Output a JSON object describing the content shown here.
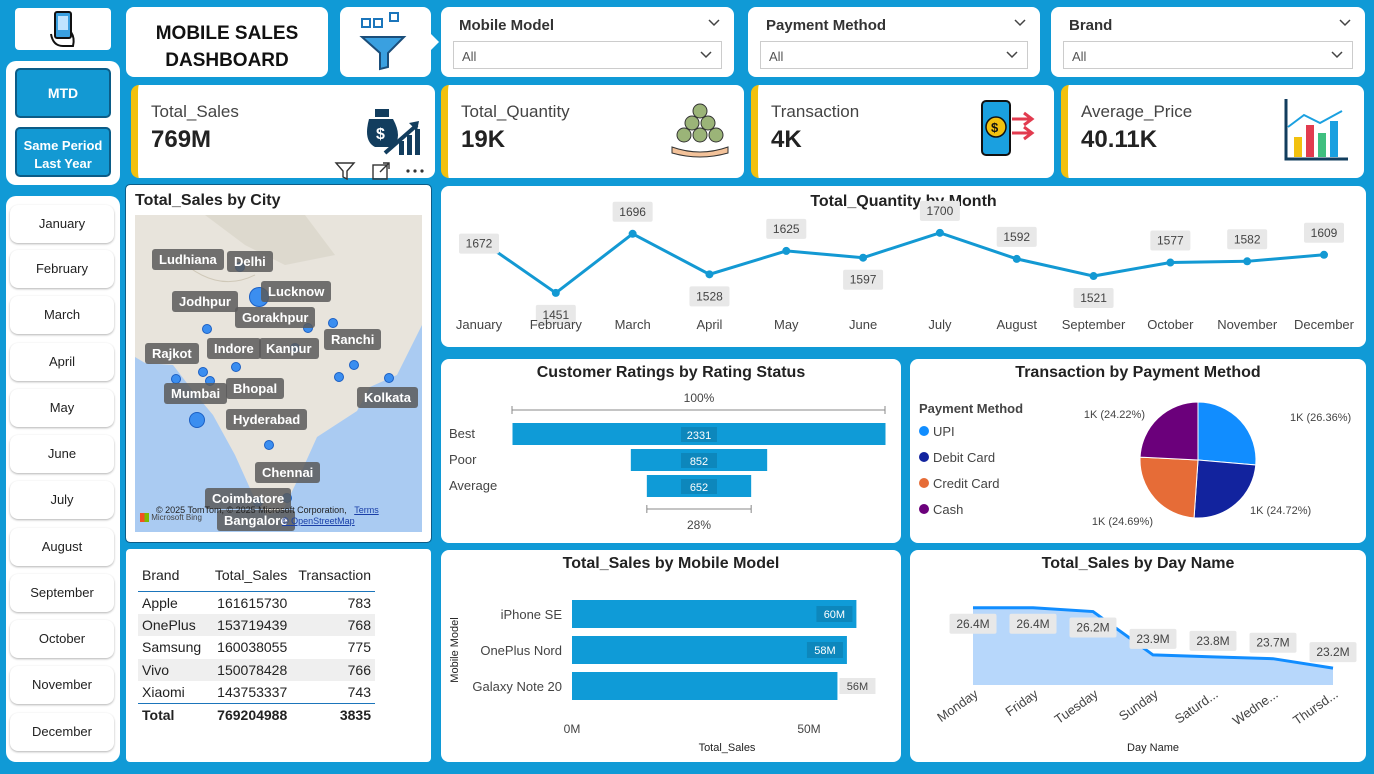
{
  "header": {
    "title_line1": "MOBILE SALES",
    "title_line2": "DASHBOARD"
  },
  "nav": {
    "mtd_label": "MTD",
    "spl_label": "Same Period Last Year"
  },
  "slicers": [
    {
      "label": "Mobile Model",
      "value": "All"
    },
    {
      "label": "Payment Method",
      "value": "All"
    },
    {
      "label": "Brand",
      "value": "All"
    }
  ],
  "kpis": [
    {
      "label": "Total_Sales",
      "value": "769M",
      "icon": "money-bag-growth-icon"
    },
    {
      "label": "Total_Quantity",
      "value": "19K",
      "icon": "coins-hand-icon"
    },
    {
      "label": "Transaction",
      "value": "4K",
      "icon": "phone-payment-icon"
    },
    {
      "label": "Average_Price",
      "value": "40.11K",
      "icon": "bar-chart-icon"
    }
  ],
  "months": [
    "January",
    "February",
    "March",
    "April",
    "May",
    "June",
    "July",
    "August",
    "September",
    "October",
    "November",
    "December"
  ],
  "map": {
    "title": "Total_Sales by City",
    "cities": [
      "Ludhiana",
      "Delhi",
      "Lucknow",
      "Jodhpur",
      "Gorakhpur",
      "Rajkot",
      "Indore",
      "Kanpur",
      "Ranchi",
      "Mumbai",
      "Bhopal",
      "Kolkata",
      "Hyderabad",
      "Chennai",
      "Coimbatore",
      "Bangalore"
    ],
    "attribution": "© 2025 TomTom, © 2025 Microsoft Corporation,",
    "terms": "Terms",
    "osm": "© OpenStreetMap",
    "bing": "Microsoft Bing"
  },
  "brand_table": {
    "headers": [
      "Brand",
      "Total_Sales",
      "Transaction"
    ],
    "rows": [
      [
        "Apple",
        "161615730",
        "783"
      ],
      [
        "OnePlus",
        "153719439",
        "768"
      ],
      [
        "Samsung",
        "160038055",
        "775"
      ],
      [
        "Vivo",
        "150078428",
        "766"
      ],
      [
        "Xiaomi",
        "143753337",
        "743"
      ]
    ],
    "total": [
      "Total",
      "769204988",
      "3835"
    ]
  },
  "chart_data": [
    {
      "type": "line",
      "title": "Total_Quantity by Month",
      "categories": [
        "January",
        "February",
        "March",
        "April",
        "May",
        "June",
        "July",
        "August",
        "September",
        "October",
        "November",
        "December"
      ],
      "values": [
        1672,
        1451,
        1696,
        1528,
        1625,
        1597,
        1700,
        1592,
        1521,
        1577,
        1582,
        1609
      ],
      "color": "#1399d3"
    },
    {
      "type": "bar",
      "title": "Customer Ratings by Rating Status",
      "categories": [
        "Best",
        "Poor",
        "Average"
      ],
      "values": [
        2331,
        852,
        652
      ],
      "top_label": "100%",
      "bottom_label": "28%",
      "color": "#0f9bd7"
    },
    {
      "type": "pie",
      "title": "Transaction by Payment Method",
      "legend_title": "Payment Method",
      "categories": [
        "UPI",
        "Debit Card",
        "Credit Card",
        "Cash"
      ],
      "values": [
        26.36,
        24.72,
        24.69,
        24.22
      ],
      "labels": [
        "1K (26.36%)",
        "1K (24.72%)",
        "1K (24.69%)",
        "1K (24.22%)"
      ],
      "colors": [
        "#118dff",
        "#12239e",
        "#e66c37",
        "#6b007b"
      ]
    },
    {
      "type": "bar",
      "title": "Total_Sales by Mobile Model",
      "categories": [
        "iPhone SE",
        "OnePlus Nord",
        "Galaxy Note 20"
      ],
      "values": [
        60,
        58,
        56
      ],
      "value_labels": [
        "60M",
        "58M",
        "56M"
      ],
      "xlabel": "Total_Sales",
      "ylabel": "Mobile Model",
      "ticks": [
        "0M",
        "50M"
      ],
      "xlim": [
        0,
        71
      ],
      "color": "#0f9bd7"
    },
    {
      "type": "area",
      "title": "Total_Sales by Day Name",
      "categories": [
        "Monday",
        "Friday",
        "Tuesday",
        "Sunday",
        "Saturd...",
        "Wedne...",
        "Thursd..."
      ],
      "values": [
        26.4,
        26.4,
        26.2,
        23.9,
        23.8,
        23.7,
        23.2
      ],
      "value_labels": [
        "26.4M",
        "26.4M",
        "26.2M",
        "23.9M",
        "23.8M",
        "23.7M",
        "23.2M"
      ],
      "xlabel": "Day Name",
      "color": "#118dff"
    }
  ]
}
